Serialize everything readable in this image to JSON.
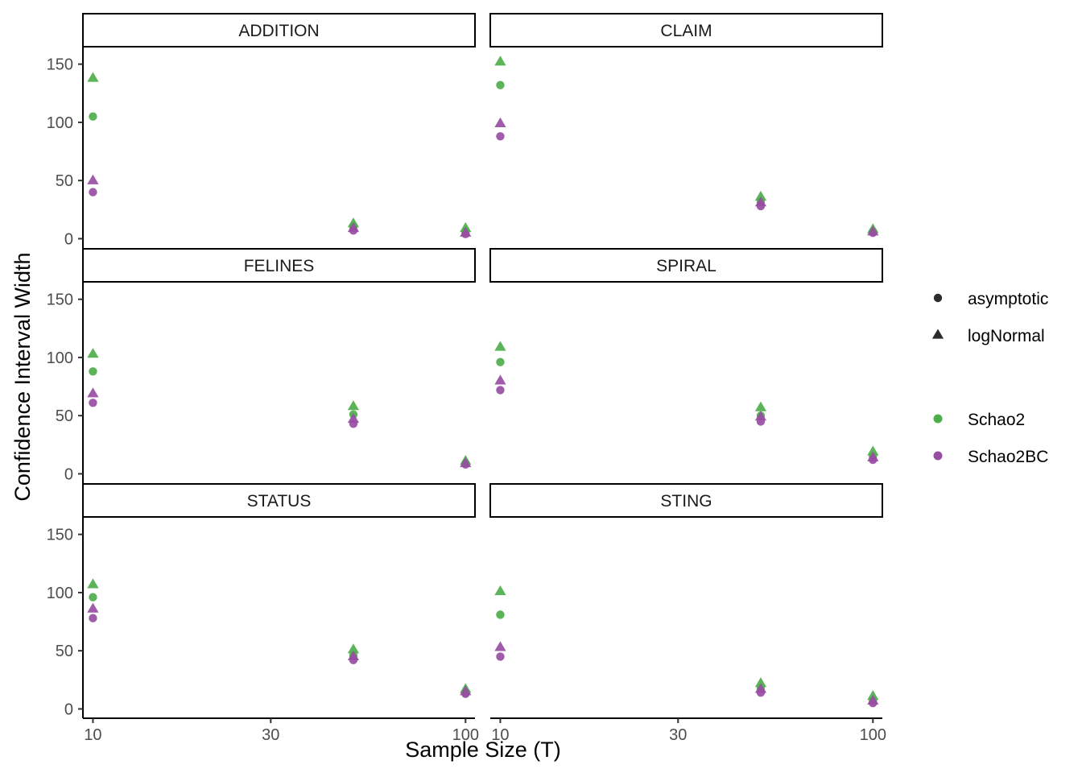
{
  "chart_data": {
    "type": "scatter",
    "title": "",
    "xlabel": "Sample Size (T)",
    "ylabel": "Confidence Interval Width",
    "x_scale": "log10",
    "x_ticks": [
      10,
      30,
      100
    ],
    "x_tick_labels": [
      "10",
      "30",
      "100"
    ],
    "xlim": [
      9.4,
      106
    ],
    "y_ticks": [
      0,
      50,
      100,
      150
    ],
    "y_tick_labels": [
      "0",
      "50",
      "100",
      "150"
    ],
    "ylim": [
      -8,
      165
    ],
    "grid": false,
    "facet_rows": 3,
    "facet_cols": 2,
    "x_values": [
      10,
      50,
      100
    ],
    "shape_legend": [
      {
        "name": "asymptotic",
        "shape": "circle"
      },
      {
        "name": "logNormal",
        "shape": "triangle"
      }
    ],
    "color_legend": [
      {
        "name": "Schao2",
        "color": "#4daf4a"
      },
      {
        "name": "Schao2BC",
        "color": "#984ea3"
      }
    ],
    "legend_position": "right",
    "panels": [
      {
        "name": "ADDITION",
        "series": [
          {
            "method": "Schao2",
            "interval": "asymptotic",
            "values": [
              105,
              10,
              6
            ]
          },
          {
            "method": "Schao2",
            "interval": "logNormal",
            "values": [
              138,
              13,
              9
            ]
          },
          {
            "method": "Schao2BC",
            "interval": "asymptotic",
            "values": [
              40,
              7,
              4
            ]
          },
          {
            "method": "Schao2BC",
            "interval": "logNormal",
            "values": [
              50,
              9,
              5
            ]
          }
        ]
      },
      {
        "name": "CLAIM",
        "series": [
          {
            "method": "Schao2",
            "interval": "asymptotic",
            "values": [
              132,
              32,
              6
            ]
          },
          {
            "method": "Schao2",
            "interval": "logNormal",
            "values": [
              152,
              36,
              8
            ]
          },
          {
            "method": "Schao2BC",
            "interval": "asymptotic",
            "values": [
              88,
              28,
              5
            ]
          },
          {
            "method": "Schao2BC",
            "interval": "logNormal",
            "values": [
              99,
              31,
              6
            ]
          }
        ]
      },
      {
        "name": "FELINES",
        "series": [
          {
            "method": "Schao2",
            "interval": "asymptotic",
            "values": [
              88,
              51,
              9
            ]
          },
          {
            "method": "Schao2",
            "interval": "logNormal",
            "values": [
              103,
              58,
              11
            ]
          },
          {
            "method": "Schao2BC",
            "interval": "asymptotic",
            "values": [
              61,
              43,
              8
            ]
          },
          {
            "method": "Schao2BC",
            "interval": "logNormal",
            "values": [
              69,
              47,
              9
            ]
          }
        ]
      },
      {
        "name": "SPIRAL",
        "series": [
          {
            "method": "Schao2",
            "interval": "asymptotic",
            "values": [
              96,
              50,
              15
            ]
          },
          {
            "method": "Schao2",
            "interval": "logNormal",
            "values": [
              109,
              57,
              19
            ]
          },
          {
            "method": "Schao2BC",
            "interval": "asymptotic",
            "values": [
              72,
              45,
              12
            ]
          },
          {
            "method": "Schao2BC",
            "interval": "logNormal",
            "values": [
              80,
              49,
              14
            ]
          }
        ]
      },
      {
        "name": "STATUS",
        "series": [
          {
            "method": "Schao2",
            "interval": "asymptotic",
            "values": [
              96,
              46,
              14
            ]
          },
          {
            "method": "Schao2",
            "interval": "logNormal",
            "values": [
              107,
              51,
              17
            ]
          },
          {
            "method": "Schao2BC",
            "interval": "asymptotic",
            "values": [
              78,
              42,
              13
            ]
          },
          {
            "method": "Schao2BC",
            "interval": "logNormal",
            "values": [
              86,
              45,
              15
            ]
          }
        ]
      },
      {
        "name": "STING",
        "series": [
          {
            "method": "Schao2",
            "interval": "asymptotic",
            "values": [
              81,
              18,
              7
            ]
          },
          {
            "method": "Schao2",
            "interval": "logNormal",
            "values": [
              101,
              22,
              11
            ]
          },
          {
            "method": "Schao2BC",
            "interval": "asymptotic",
            "values": [
              45,
              14,
              5
            ]
          },
          {
            "method": "Schao2BC",
            "interval": "logNormal",
            "values": [
              53,
              17,
              7
            ]
          }
        ]
      }
    ]
  }
}
